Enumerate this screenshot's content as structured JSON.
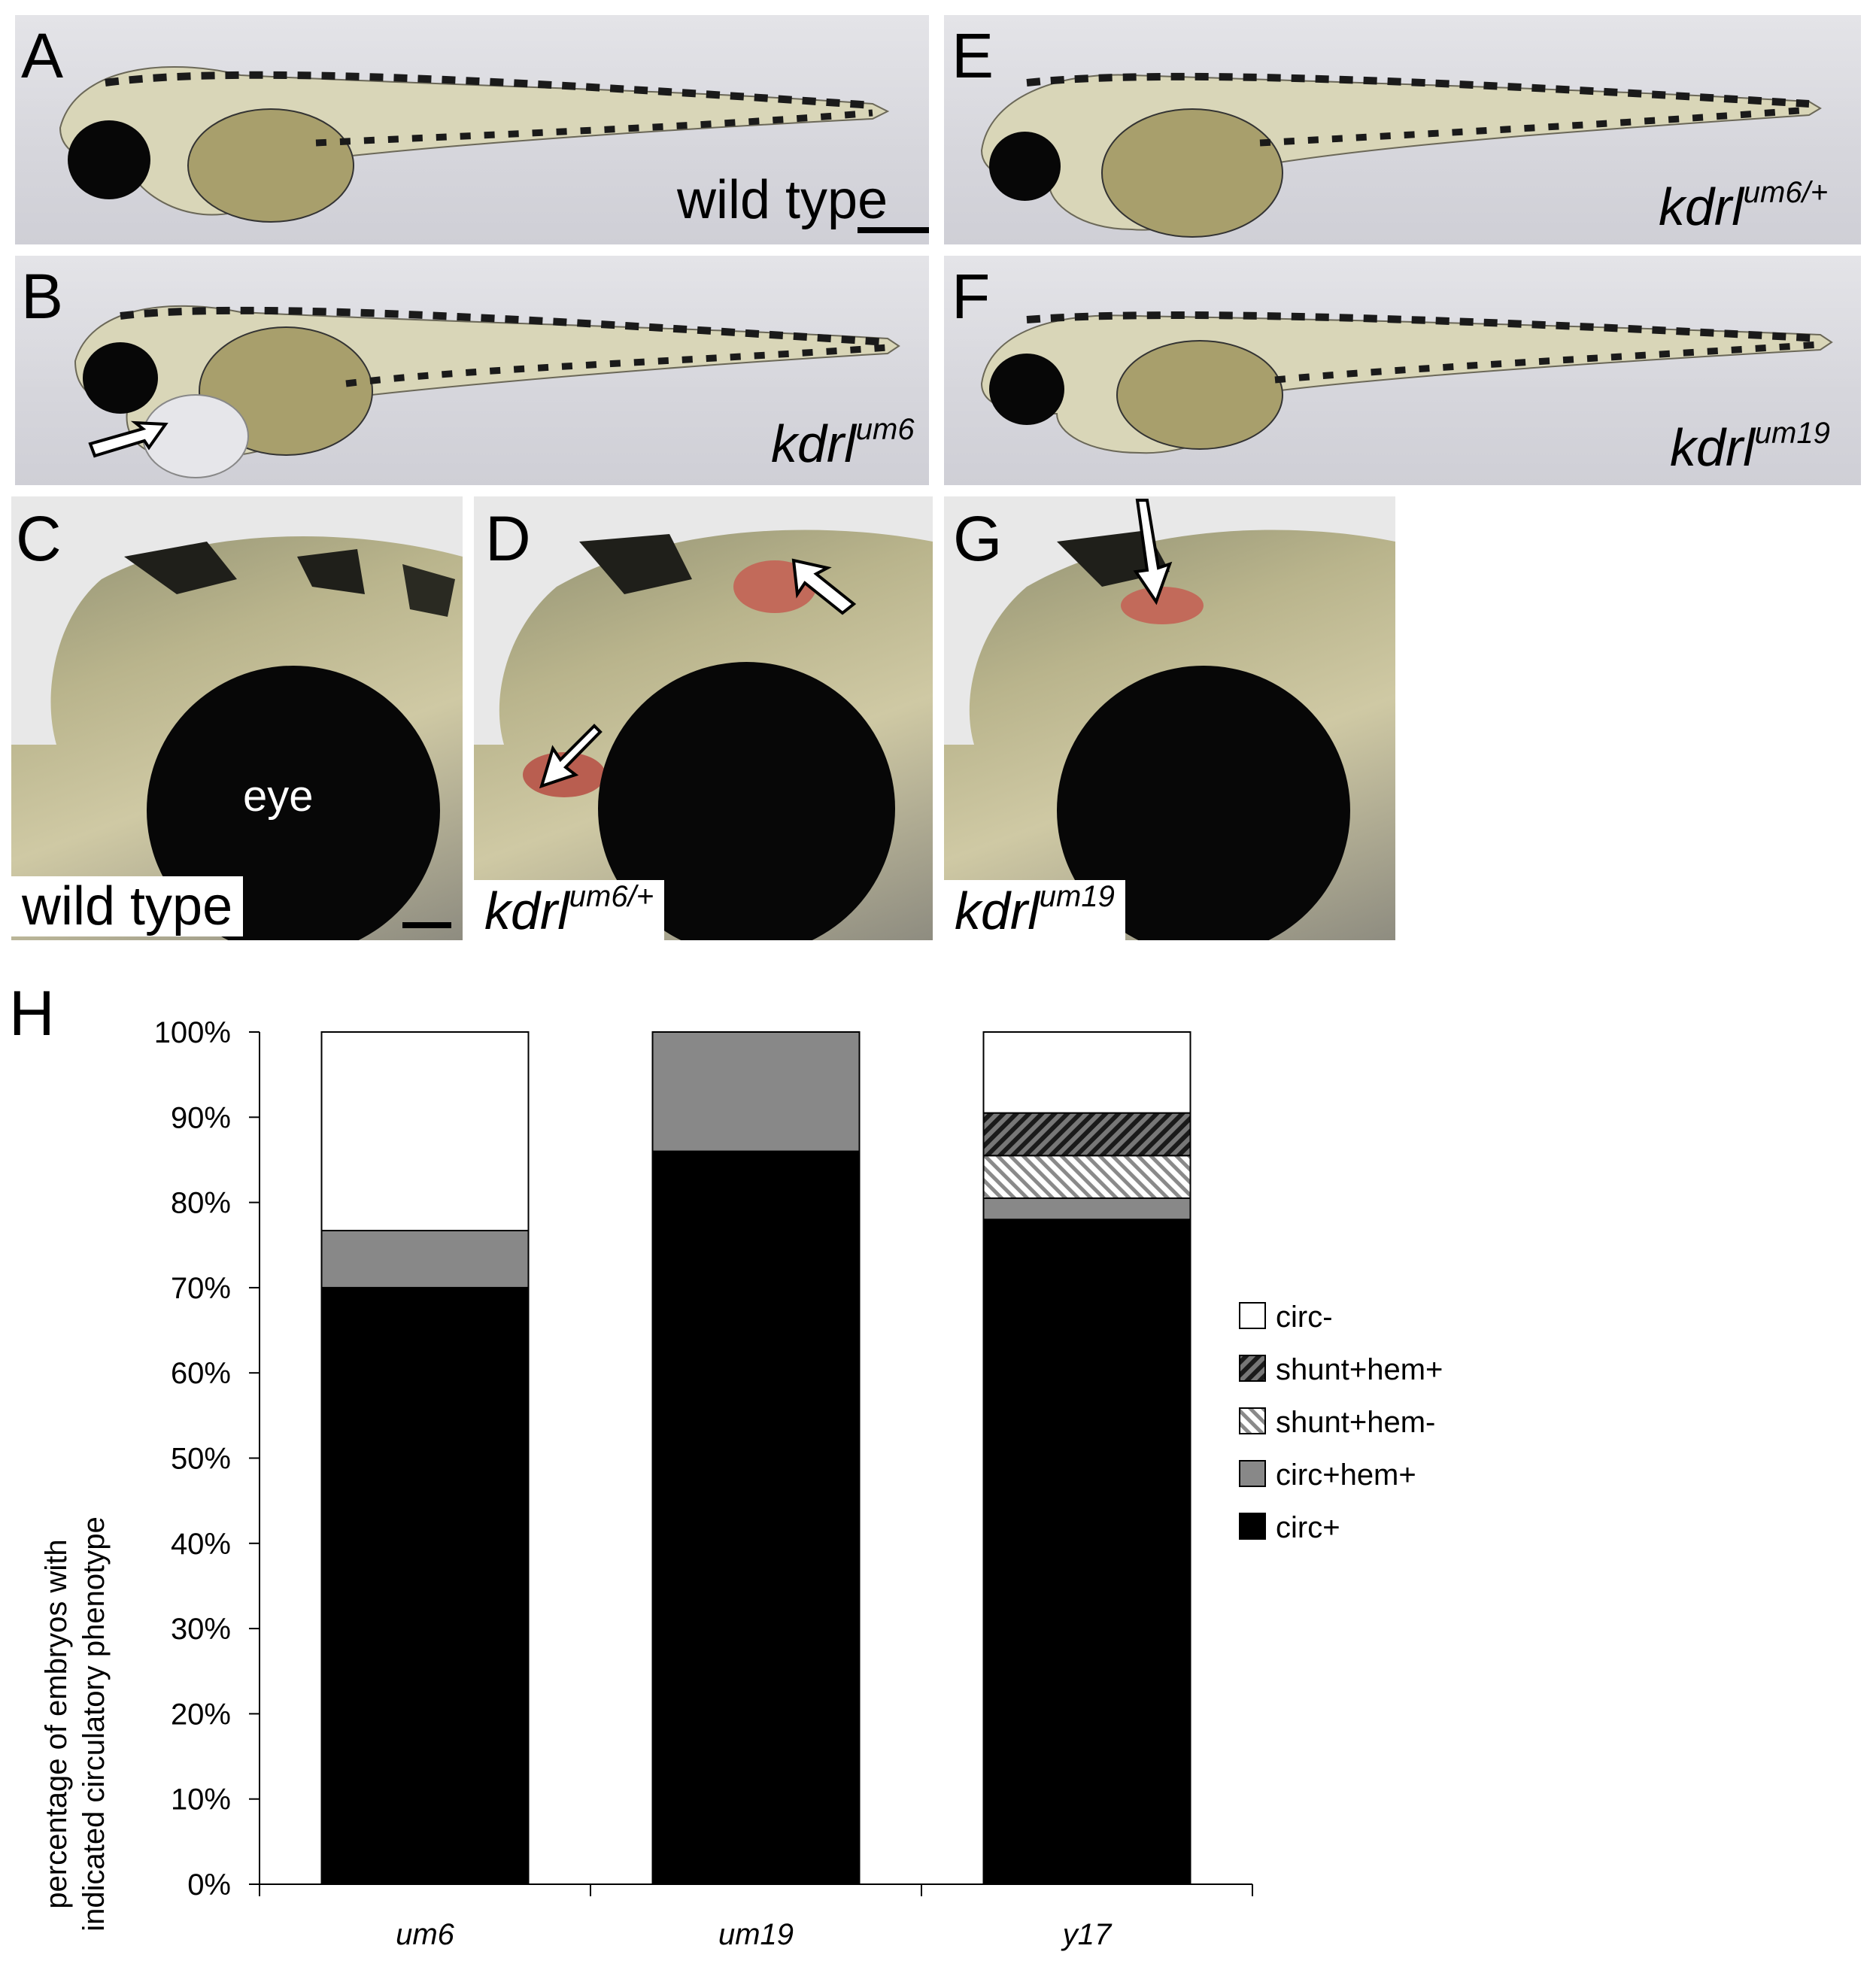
{
  "panels": {
    "A": {
      "letter": "A",
      "caption": "wild type"
    },
    "B": {
      "letter": "B",
      "gene": "kdrl",
      "allele": "um6"
    },
    "C": {
      "letter": "C",
      "caption": "wild type",
      "eye_label": "eye"
    },
    "D": {
      "letter": "D",
      "gene": "kdrl",
      "allele": "um6/+"
    },
    "E": {
      "letter": "E",
      "gene": "kdrl",
      "allele": "um6/+"
    },
    "F": {
      "letter": "F",
      "gene": "kdrl",
      "allele": "um19"
    },
    "G": {
      "letter": "G",
      "gene": "kdrl",
      "allele": "um19"
    },
    "H": {
      "letter": "H"
    }
  },
  "colors": {
    "circ_minus": "#ffffff",
    "shunt_hem_plus": "#333333",
    "shunt_hem_minus": "#bdbdbd",
    "circ_hem_plus": "#888888",
    "circ_plus": "#000000"
  },
  "chart_data": {
    "type": "bar",
    "stacked": true,
    "categories": [
      "um6",
      "um19",
      "y17"
    ],
    "ylabel": "percentage of embryos with indicated circulatory phenotype",
    "ylim": [
      0,
      100
    ],
    "yticks": [
      "0%",
      "10%",
      "20%",
      "30%",
      "40%",
      "50%",
      "60%",
      "70%",
      "80%",
      "90%",
      "100%"
    ],
    "legend_position": "right",
    "series": [
      {
        "name": "circ+",
        "values": [
          70,
          86,
          78
        ],
        "color": "#000000",
        "pattern": "solid"
      },
      {
        "name": "circ+hem+",
        "values": [
          6.7,
          14,
          2.5
        ],
        "color": "#888888",
        "pattern": "solid"
      },
      {
        "name": "shunt+hem-",
        "values": [
          0,
          0,
          5
        ],
        "color": "#bdbdbd",
        "pattern": "hatch-light"
      },
      {
        "name": "shunt+hem+",
        "values": [
          0,
          0,
          5
        ],
        "color": "#333333",
        "pattern": "hatch-dark"
      },
      {
        "name": "circ-",
        "values": [
          23.3,
          0,
          9.5
        ],
        "color": "#ffffff",
        "pattern": "solid"
      }
    ],
    "legend_order": [
      "circ-",
      "shunt+hem+",
      "shunt+hem-",
      "circ+hem+",
      "circ+"
    ]
  }
}
